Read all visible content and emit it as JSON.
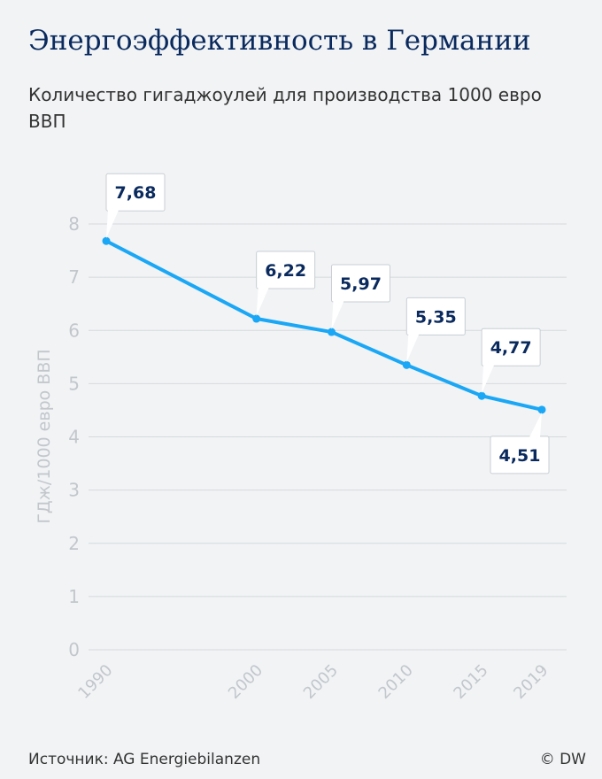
{
  "title": "Энергоэффективность в Германии",
  "subtitle": "Количество гигаджоулей для производства 1000 евро ВВП",
  "source": "Источник: AG Energiebilanzen",
  "copyright": "© DW",
  "colors": {
    "line": "#1aa7f5",
    "label_text": "#0a2a5e",
    "axis_text": "#c3c7cc",
    "grid": "#d6d9dd"
  },
  "chart_data": {
    "type": "line",
    "x": [
      1990,
      2000,
      2005,
      2010,
      2015,
      2019
    ],
    "values": [
      7.68,
      6.22,
      5.97,
      5.35,
      4.77,
      4.51
    ],
    "data_labels": [
      "7,68",
      "6,22",
      "5,97",
      "5,35",
      "4,77",
      "4,51"
    ],
    "ylabel": "ГДж/1000 евро ВВП",
    "xlabel": "",
    "ylim": [
      0,
      8
    ],
    "yticks": [
      0,
      1,
      2,
      3,
      4,
      5,
      6,
      7,
      8
    ],
    "grid": true,
    "label_placement": [
      "above",
      "above",
      "above",
      "above",
      "above",
      "below"
    ]
  }
}
